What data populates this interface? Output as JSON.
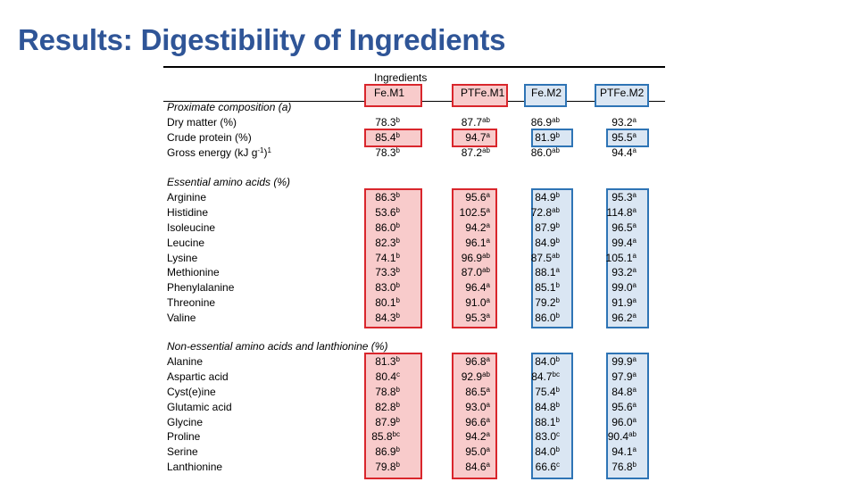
{
  "title": "Results: Digestibility of Ingredients",
  "header": {
    "group_label": "Ingredients",
    "columns": [
      "Fe.M1",
      "PTFe.M1",
      "Fe.M2",
      "PTFe.M2"
    ]
  },
  "sections": [
    {
      "heading": "Proximate composition (a)",
      "rows": [
        {
          "label": "Dry matter (%)",
          "values": [
            [
              "78.3",
              "b"
            ],
            [
              "87.7",
              "ab"
            ],
            [
              "86.9",
              "ab"
            ],
            [
              "93.2",
              "a"
            ]
          ]
        },
        {
          "label": "Crude protein (%)",
          "values": [
            [
              "85.4",
              "b"
            ],
            [
              "94.7",
              "a"
            ],
            [
              "81.9",
              "b"
            ],
            [
              "95.5",
              "a"
            ]
          ]
        },
        {
          "label": "Gross energy (kJ g",
          "label_sup": "-1",
          "label_end": ")",
          "label_sup2": "1",
          "values": [
            [
              "78.3",
              "b"
            ],
            [
              "87.2",
              "ab"
            ],
            [
              "86.0",
              "ab"
            ],
            [
              "94.4",
              "a"
            ]
          ]
        }
      ]
    },
    {
      "heading": "Essential amino acids (%)",
      "rows": [
        {
          "label": "Arginine",
          "values": [
            [
              "86.3",
              "b"
            ],
            [
              "95.6",
              "a"
            ],
            [
              "84.9",
              "b"
            ],
            [
              "95.3",
              "a"
            ]
          ]
        },
        {
          "label": "Histidine",
          "values": [
            [
              "53.6",
              "b"
            ],
            [
              "102.5",
              "a"
            ],
            [
              "72.8",
              "ab"
            ],
            [
              "114.8",
              "a"
            ]
          ]
        },
        {
          "label": "Isoleucine",
          "values": [
            [
              "86.0",
              "b"
            ],
            [
              "94.2",
              "a"
            ],
            [
              "87.9",
              "b"
            ],
            [
              "96.5",
              "a"
            ]
          ]
        },
        {
          "label": "Leucine",
          "values": [
            [
              "82.3",
              "b"
            ],
            [
              "96.1",
              "a"
            ],
            [
              "84.9",
              "b"
            ],
            [
              "99.4",
              "a"
            ]
          ]
        },
        {
          "label": "Lysine",
          "values": [
            [
              "74.1",
              "b"
            ],
            [
              "96.9",
              "ab"
            ],
            [
              "87.5",
              "ab"
            ],
            [
              "105.1",
              "a"
            ]
          ]
        },
        {
          "label": "Methionine",
          "values": [
            [
              "73.3",
              "b"
            ],
            [
              "87.0",
              "ab"
            ],
            [
              "88.1",
              "a"
            ],
            [
              "93.2",
              "a"
            ]
          ]
        },
        {
          "label": "Phenylalanine",
          "values": [
            [
              "83.0",
              "b"
            ],
            [
              "96.4",
              "a"
            ],
            [
              "85.1",
              "b"
            ],
            [
              "99.0",
              "a"
            ]
          ]
        },
        {
          "label": "Threonine",
          "values": [
            [
              "80.1",
              "b"
            ],
            [
              "91.0",
              "a"
            ],
            [
              "79.2",
              "b"
            ],
            [
              "91.9",
              "a"
            ]
          ]
        },
        {
          "label": "Valine",
          "values": [
            [
              "84.3",
              "b"
            ],
            [
              "95.3",
              "a"
            ],
            [
              "86.0",
              "b"
            ],
            [
              "96.2",
              "a"
            ]
          ]
        }
      ]
    },
    {
      "heading": "Non-essential amino acids and lanthionine (%)",
      "rows": [
        {
          "label": "Alanine",
          "values": [
            [
              "81.3",
              "b"
            ],
            [
              "96.8",
              "a"
            ],
            [
              "84.0",
              "b"
            ],
            [
              "99.9",
              "a"
            ]
          ]
        },
        {
          "label": "Aspartic acid",
          "values": [
            [
              "80.4",
              "c"
            ],
            [
              "92.9",
              "ab"
            ],
            [
              "84.7",
              "bc"
            ],
            [
              "97.9",
              "a"
            ]
          ]
        },
        {
          "label": "Cyst(e)ine",
          "values": [
            [
              "78.8",
              "b"
            ],
            [
              "86.5",
              "a"
            ],
            [
              "75.4",
              "b"
            ],
            [
              "84.8",
              "a"
            ]
          ]
        },
        {
          "label": "Glutamic acid",
          "values": [
            [
              "82.8",
              "b"
            ],
            [
              "93.0",
              "a"
            ],
            [
              "84.8",
              "b"
            ],
            [
              "95.6",
              "a"
            ]
          ]
        },
        {
          "label": "Glycine",
          "values": [
            [
              "87.9",
              "b"
            ],
            [
              "96.6",
              "a"
            ],
            [
              "88.1",
              "b"
            ],
            [
              "96.0",
              "a"
            ]
          ]
        },
        {
          "label": "Proline",
          "values": [
            [
              "85.8",
              "bc"
            ],
            [
              "94.2",
              "a"
            ],
            [
              "83.0",
              "c"
            ],
            [
              "90.4",
              "ab"
            ]
          ]
        },
        {
          "label": "Serine",
          "values": [
            [
              "86.9",
              "b"
            ],
            [
              "95.0",
              "a"
            ],
            [
              "84.0",
              "b"
            ],
            [
              "94.1",
              "a"
            ]
          ]
        },
        {
          "label": "Lanthionine",
          "values": [
            [
              "79.8",
              "b"
            ],
            [
              "84.6",
              "a"
            ],
            [
              "66.6",
              "c"
            ],
            [
              "76.8",
              "b"
            ]
          ]
        }
      ]
    }
  ],
  "colors": {
    "title": "#2f5597",
    "red_fill": "#f8cbcb",
    "red_border": "#d9262c",
    "blue_fill": "#dae6f3",
    "blue_border": "#2e74b5"
  }
}
